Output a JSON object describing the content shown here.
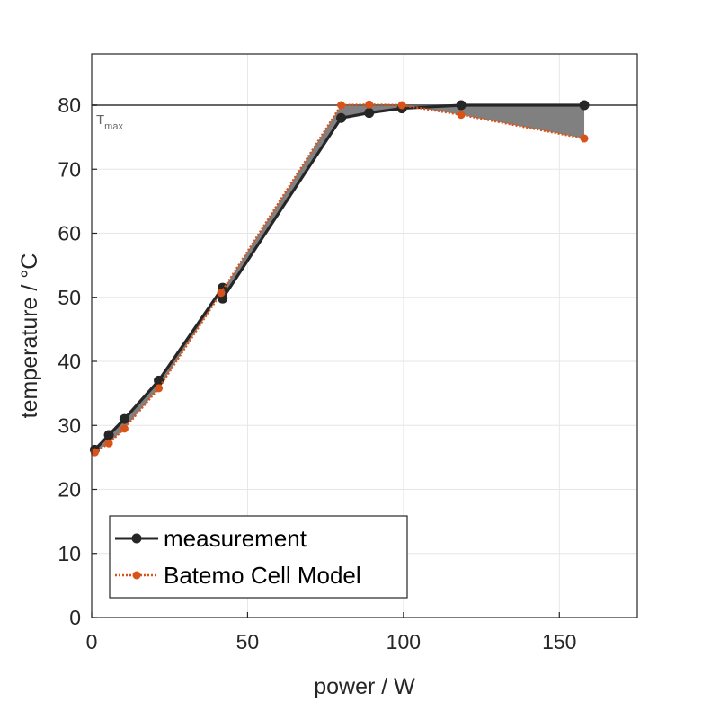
{
  "chart_data": {
    "type": "line",
    "xlabel": "power / W",
    "ylabel": "temperature / °C",
    "xlim": [
      0,
      175
    ],
    "ylim": [
      0,
      88
    ],
    "xticks": [
      0,
      50,
      100,
      150
    ],
    "yticks": [
      0,
      10,
      20,
      30,
      40,
      50,
      60,
      70,
      80
    ],
    "grid": true,
    "legend_position": "bottom-left",
    "reference_line": {
      "y": 80,
      "label": "T",
      "label_sub": "max",
      "color": "#666666"
    },
    "fill_between": {
      "color": "#808080"
    },
    "series": [
      {
        "name": "measurement",
        "color": "#262626",
        "style": "solid",
        "x": [
          1,
          5.5,
          10.5,
          21.5,
          42,
          42,
          80,
          89,
          99.5,
          118.5,
          158
        ],
        "y": [
          26.2,
          28.5,
          31.0,
          37.0,
          51.5,
          49.8,
          78.0,
          78.8,
          79.5,
          80.0,
          80.0
        ]
      },
      {
        "name": "Batemo Cell Model",
        "color": "#d95319",
        "style": "dotted",
        "x": [
          1,
          5.5,
          10.5,
          21.5,
          41.5,
          80,
          89,
          99.5,
          118.5,
          158
        ],
        "y": [
          25.8,
          27.2,
          29.5,
          35.8,
          50.7,
          80.0,
          80.1,
          80.0,
          78.5,
          74.8
        ]
      }
    ]
  }
}
